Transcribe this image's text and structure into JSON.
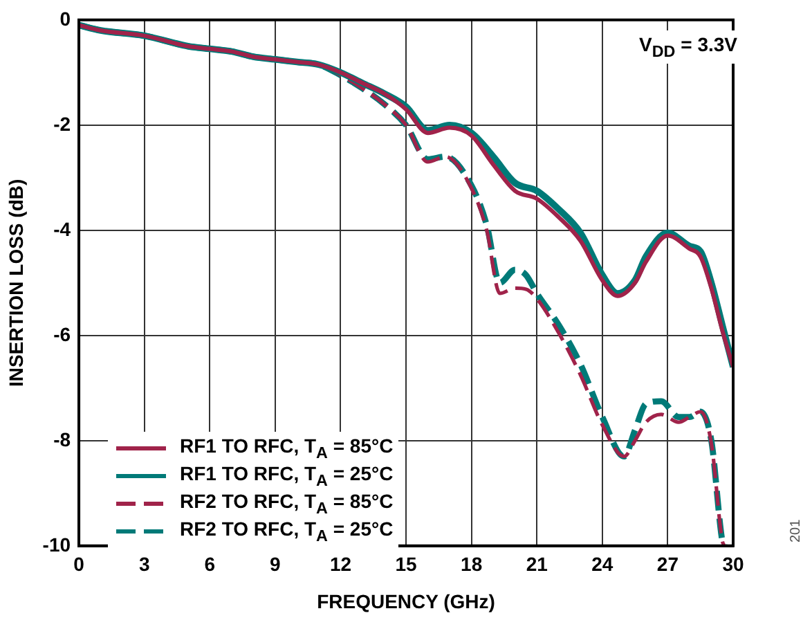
{
  "chart_data": {
    "type": "line",
    "xlabel": "FREQUENCY (GHz)",
    "ylabel": "INSERTION LOSS (dB)",
    "xlim": [
      0,
      30
    ],
    "ylim": [
      -10,
      0
    ],
    "xticks": [
      0,
      3,
      6,
      9,
      12,
      15,
      18,
      21,
      24,
      27,
      30
    ],
    "yticks": [
      -10,
      -8,
      -6,
      -4,
      -2,
      0
    ],
    "grid": true,
    "legend": "bottom left",
    "marker": "none",
    "annotations": [
      "V$_{DD}$ = 3.3V",
      "201"
    ],
    "series": [
      {
        "name": "RF1 TO RFC, T$_{A}$ = 85°C",
        "color": "#a0234a",
        "line_style": "solid",
        "x": [
          0,
          1,
          3,
          5,
          6,
          7,
          8,
          9,
          10,
          11,
          12,
          13,
          14,
          15,
          16,
          17,
          18,
          19,
          20,
          21,
          22,
          23,
          24,
          24.7,
          25.5,
          26,
          27,
          28,
          28.5,
          29,
          29.5,
          30
        ],
        "values": [
          -0.1,
          -0.2,
          -0.3,
          -0.5,
          -0.55,
          -0.6,
          -0.7,
          -0.75,
          -0.8,
          -0.85,
          -1.0,
          -1.2,
          -1.4,
          -1.7,
          -2.15,
          -2.05,
          -2.2,
          -2.75,
          -3.25,
          -3.4,
          -3.75,
          -4.2,
          -4.95,
          -5.25,
          -5.0,
          -4.6,
          -4.1,
          -4.35,
          -4.5,
          -5.1,
          -5.9,
          -6.6
        ]
      },
      {
        "name": "RF1 TO RFC, T$_{A}$ = 25°C",
        "color": "#007a78",
        "line_style": "solid",
        "x": [
          0,
          1,
          3,
          5,
          6,
          7,
          8,
          9,
          10,
          11,
          12,
          13,
          14,
          15,
          16,
          17,
          18,
          19,
          20,
          21,
          22,
          23,
          24,
          24.7,
          25.5,
          26,
          27,
          28,
          28.5,
          29,
          29.5,
          30
        ],
        "values": [
          -0.1,
          -0.2,
          -0.3,
          -0.5,
          -0.55,
          -0.6,
          -0.7,
          -0.75,
          -0.8,
          -0.85,
          -1.0,
          -1.2,
          -1.4,
          -1.65,
          -2.1,
          -2.0,
          -2.15,
          -2.6,
          -3.1,
          -3.25,
          -3.6,
          -4.05,
          -4.85,
          -5.2,
          -4.95,
          -4.5,
          -4.05,
          -4.3,
          -4.4,
          -5.0,
          -5.8,
          -6.6
        ]
      },
      {
        "name": "RF2 TO RFC, T$_{A}$ = 85°C",
        "color": "#a0234a",
        "line_style": "dashed",
        "x": [
          0,
          1,
          3,
          5,
          6,
          7,
          8,
          9,
          10,
          11,
          12,
          13,
          14,
          15,
          16,
          16.8,
          18,
          18.7,
          19.3,
          20,
          20.5,
          21,
          22,
          23,
          24,
          25,
          25.5,
          26,
          26.7,
          27.5,
          28,
          28.5,
          29,
          29.5,
          29.6
        ],
        "values": [
          -0.1,
          -0.2,
          -0.3,
          -0.5,
          -0.55,
          -0.6,
          -0.7,
          -0.75,
          -0.8,
          -0.85,
          -1.05,
          -1.3,
          -1.6,
          -2.0,
          -2.7,
          -2.6,
          -3.2,
          -4.0,
          -5.2,
          -5.1,
          -5.12,
          -5.3,
          -5.95,
          -6.75,
          -7.7,
          -8.3,
          -8.0,
          -7.65,
          -7.5,
          -7.65,
          -7.55,
          -7.45,
          -8.05,
          -9.9,
          -10
        ]
      },
      {
        "name": "RF2 TO RFC, T$_{A}$ = 25°C",
        "color": "#007a78",
        "line_style": "dashed",
        "x": [
          0,
          1,
          3,
          5,
          6,
          7,
          8,
          9,
          10,
          11,
          12,
          13,
          14,
          15,
          16,
          16.8,
          18,
          18.7,
          19.3,
          20,
          20.5,
          21,
          22,
          23,
          24,
          25,
          25.5,
          26,
          26.7,
          27.5,
          28,
          28.5,
          29,
          29.5,
          29.6
        ],
        "values": [
          -0.1,
          -0.2,
          -0.3,
          -0.5,
          -0.55,
          -0.6,
          -0.7,
          -0.75,
          -0.8,
          -0.85,
          -1.05,
          -1.3,
          -1.6,
          -2.0,
          -2.65,
          -2.6,
          -3.15,
          -3.9,
          -5.0,
          -4.75,
          -4.85,
          -5.2,
          -5.8,
          -6.55,
          -7.55,
          -8.3,
          -7.8,
          -7.3,
          -7.25,
          -7.55,
          -7.55,
          -7.45,
          -8.0,
          -9.9,
          -10
        ]
      }
    ]
  }
}
